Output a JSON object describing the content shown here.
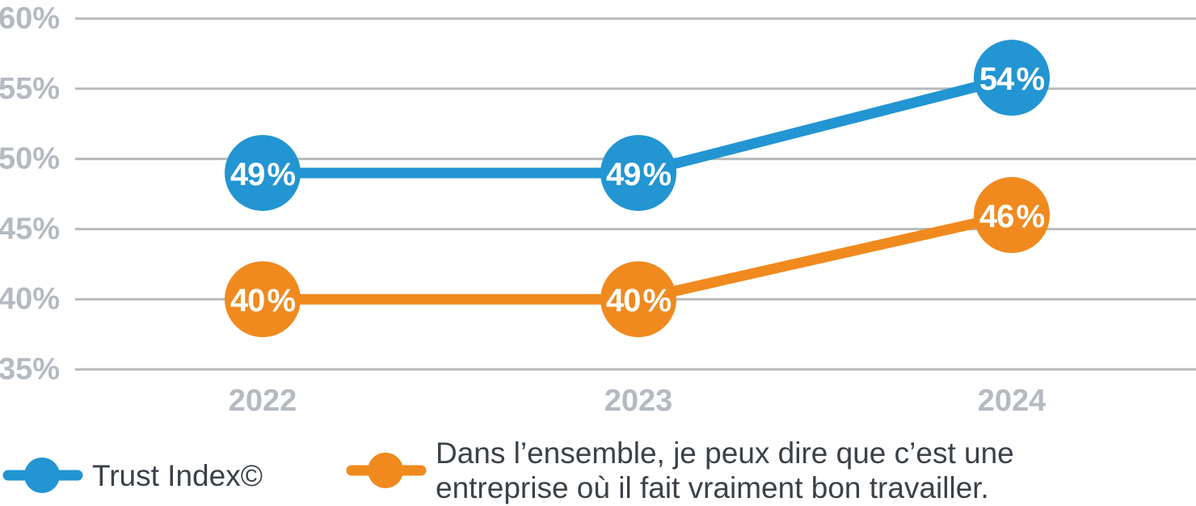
{
  "chart_data": {
    "type": "line",
    "categories": [
      "2022",
      "2023",
      "2024"
    ],
    "series": [
      {
        "name": "Trust Index©",
        "color": "#2295d2",
        "values": [
          49,
          49,
          54
        ],
        "labels": [
          "49 %",
          "49 %",
          "54 %"
        ]
      },
      {
        "name": "Dans l’ensemble, je peux dire que c’est une entreprise où il fait vraiment bon travailler.",
        "color": "#f08a1e",
        "values": [
          40,
          40,
          46
        ],
        "labels": [
          "40 %",
          "40 %",
          "46 %"
        ]
      }
    ],
    "title": "",
    "xlabel": "",
    "ylabel": "",
    "ylim": [
      35,
      60
    ],
    "yticks": [
      "60%",
      "55%",
      "50%",
      "45%",
      "40%",
      "35%"
    ],
    "grid": true,
    "legend_position": "bottom"
  },
  "legend": {
    "items": [
      {
        "color": "#2295d2",
        "lines": [
          "Trust Index©"
        ]
      },
      {
        "color": "#f08a1e",
        "lines": [
          "Dans l’ensemble, je peux dire que c’est une",
          "entreprise où il fait vraiment bon travailler."
        ]
      }
    ]
  },
  "colors": {
    "background": "#ffffff",
    "gridline": "#b7babc",
    "tick_label": "#b5bac1",
    "legend_text": "#3b4147",
    "marker_text": "#ffffff",
    "series_blue": "#2295d2",
    "series_orange": "#f08a1e"
  }
}
